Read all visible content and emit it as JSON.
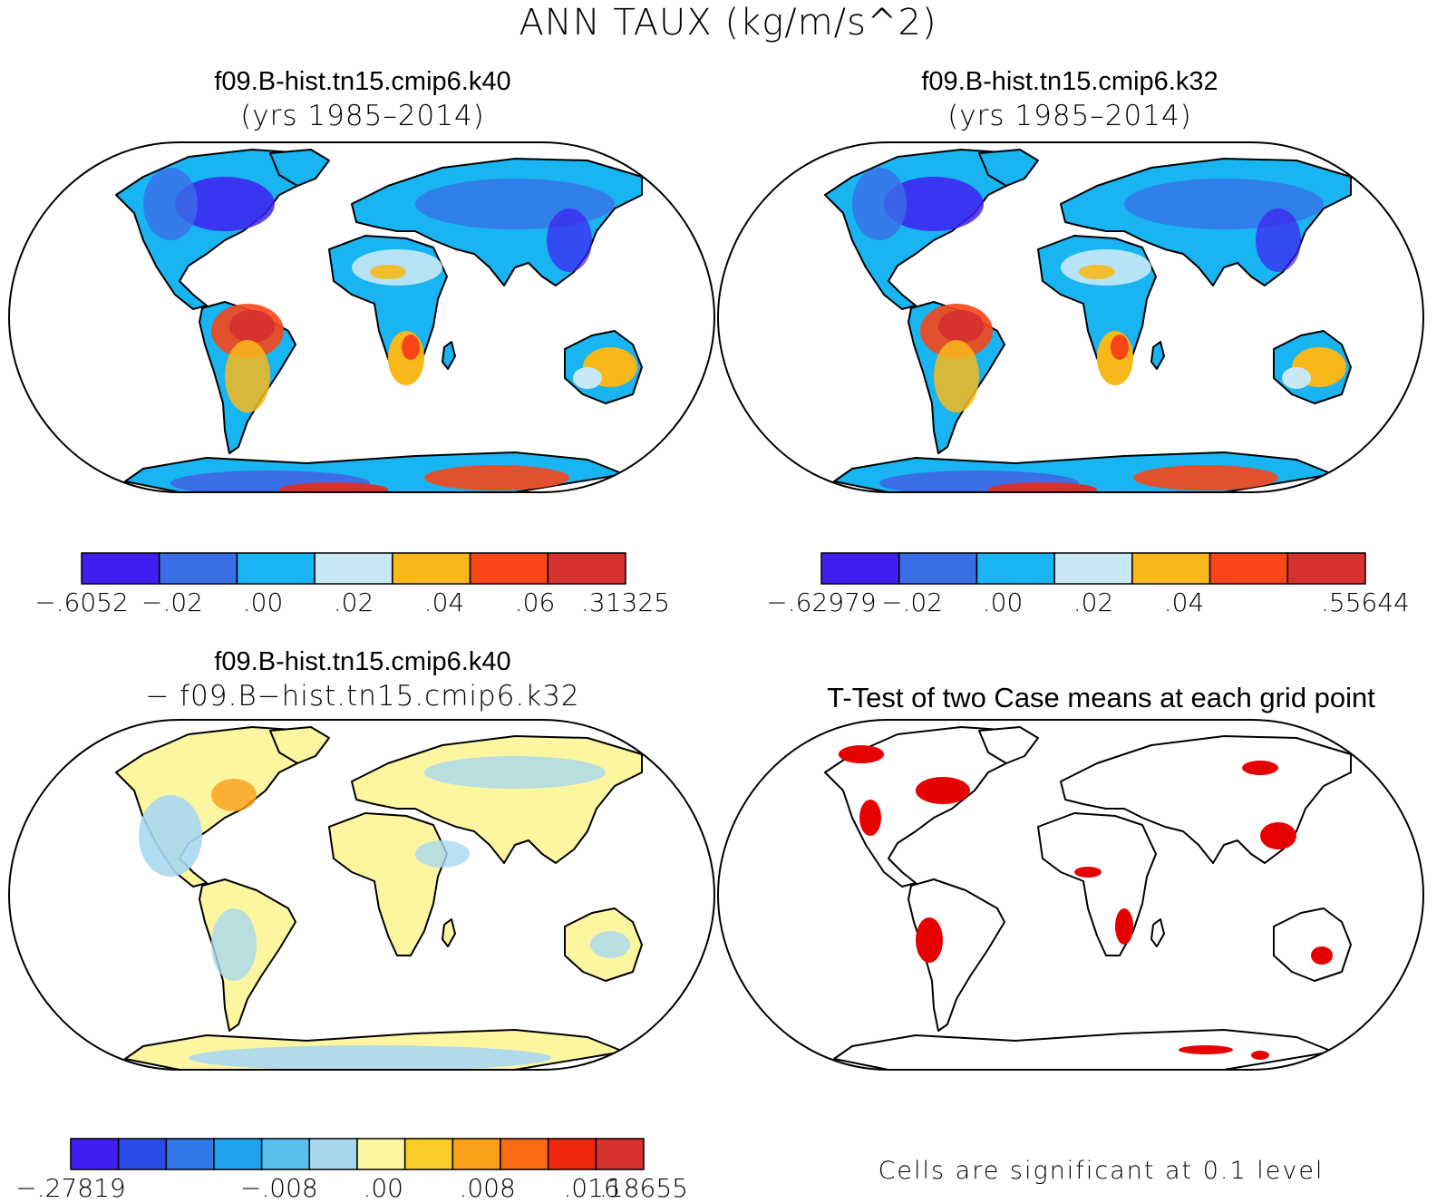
{
  "title": "ANN TAUX (kg/m/s^2)",
  "panels": [
    {
      "line1": "f09.B-hist.tn15.cmip6.k40",
      "line2": "(yrs 1985–2014)",
      "colorbar": {
        "colors": [
          "#3f1ef0",
          "#3a6ee6",
          "#19b4f2",
          "#c8e8f6",
          "#f8b81a",
          "#f84618",
          "#d63230"
        ],
        "ticks": [
          "−.6052",
          "−.02",
          ".00",
          ".02",
          ".04",
          ".06",
          ".31325"
        ]
      }
    },
    {
      "line1": "f09.B-hist.tn15.cmip6.k32",
      "line2": "(yrs 1985–2014)",
      "colorbar": {
        "colors": [
          "#3f1ef0",
          "#3a6ee6",
          "#19b4f2",
          "#c8e8f6",
          "#f8b81a",
          "#f84618",
          "#d63230"
        ],
        "ticks": [
          "−.62979",
          "−.02",
          ".00",
          ".02",
          ".04",
          "",
          ".55644"
        ]
      }
    },
    {
      "line1": "f09.B-hist.tn15.cmip6.k40",
      "line2": "− f09.B−hist.tn15.cmip6.k32",
      "colorbar": {
        "colors": [
          "#3f1ef0",
          "#2a4de8",
          "#2f78e6",
          "#1ea2ee",
          "#58c0ee",
          "#a8d8f0",
          "#fdf6a0",
          "#fbcc28",
          "#f9a018",
          "#f86a14",
          "#f02810",
          "#d63230"
        ],
        "ticks": [
          "−.27819",
          "",
          "",
          "",
          "−.008",
          "",
          ".00",
          "",
          ".008",
          "",
          ".016",
          ".18655"
        ]
      }
    }
  ],
  "ttest": {
    "title": "T-Test of two Case means at each grid point",
    "note": "Cells are significant at 0.1 level",
    "highlight_color": "#e60000"
  }
}
